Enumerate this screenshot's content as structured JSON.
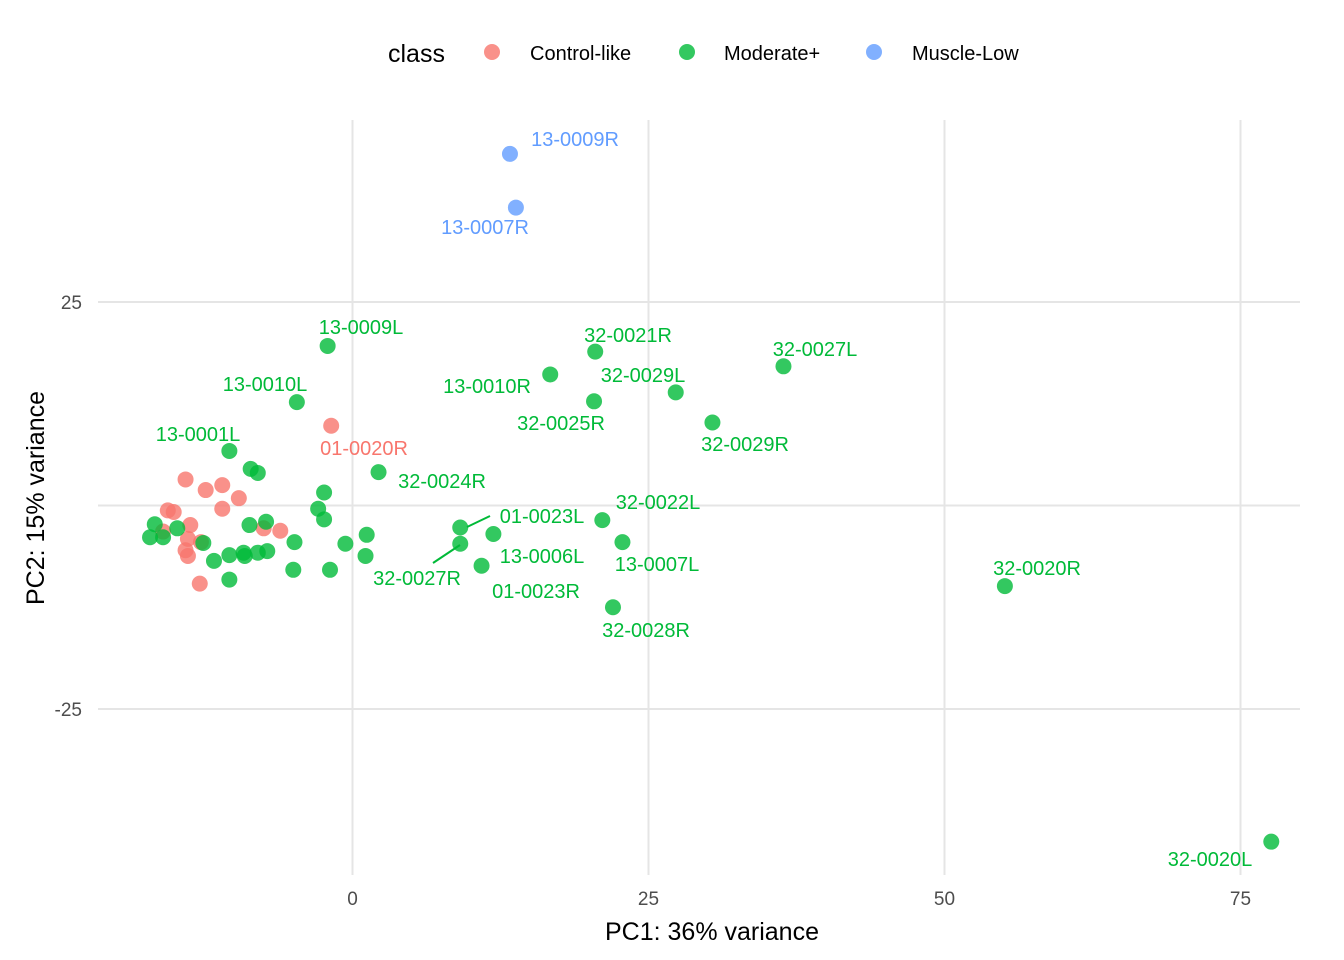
{
  "chart_data": {
    "type": "scatter",
    "xlabel": "PC1: 36% variance",
    "ylabel": "PC2: 15% variance",
    "xlim": [
      -18.5,
      80
    ],
    "ylim": [
      -46.5,
      47.5
    ],
    "x_ticks": [
      0,
      25,
      50,
      75
    ],
    "y_ticks": [
      -25,
      25
    ],
    "grid": true,
    "legend": {
      "title": "class",
      "position": "top",
      "entries": [
        {
          "name": "Control-like",
          "color": "#F8766D"
        },
        {
          "name": "Moderate+",
          "color": "#00BA38"
        },
        {
          "name": "Muscle-Low",
          "color": "#619CFF"
        }
      ]
    },
    "series": [
      {
        "name": "Control-like",
        "color": "#F8766D",
        "points": [
          {
            "x": -1.8,
            "y": 9.8,
            "label": "01-0020R"
          },
          {
            "x": -14.1,
            "y": 3.2
          },
          {
            "x": -12.4,
            "y": 1.9
          },
          {
            "x": -11.0,
            "y": 2.5
          },
          {
            "x": -9.6,
            "y": 0.9
          },
          {
            "x": -11.0,
            "y": -0.4
          },
          {
            "x": -15.6,
            "y": -0.6
          },
          {
            "x": -15.1,
            "y": -0.8
          },
          {
            "x": -13.7,
            "y": -2.4
          },
          {
            "x": -16.0,
            "y": -3.2
          },
          {
            "x": -13.9,
            "y": -4.1
          },
          {
            "x": -12.8,
            "y": -4.5
          },
          {
            "x": -14.1,
            "y": -5.5
          },
          {
            "x": -13.9,
            "y": -6.2
          },
          {
            "x": -7.5,
            "y": -2.8
          },
          {
            "x": -6.1,
            "y": -3.1
          },
          {
            "x": -12.9,
            "y": -9.6
          }
        ]
      },
      {
        "name": "Moderate+",
        "color": "#00BA38",
        "points": [
          {
            "x": -2.1,
            "y": 19.6,
            "label": "13-0009L"
          },
          {
            "x": -4.7,
            "y": 12.7,
            "label": "13-0010L"
          },
          {
            "x": -10.4,
            "y": 6.7,
            "label": "13-0001L"
          },
          {
            "x": 2.2,
            "y": 4.1,
            "label": "32-0024R"
          },
          {
            "x": 16.7,
            "y": 16.1,
            "label": "13-0010R"
          },
          {
            "x": 20.5,
            "y": 18.9,
            "label": "32-0021R"
          },
          {
            "x": 20.4,
            "y": 12.8,
            "label": "32-0025R"
          },
          {
            "x": 27.3,
            "y": 13.9,
            "label": "32-0029L"
          },
          {
            "x": 30.4,
            "y": 10.2,
            "label": "32-0029R"
          },
          {
            "x": 36.4,
            "y": 17.1,
            "label": "32-0027L"
          },
          {
            "x": 9.1,
            "y": -2.7,
            "label": "01-0023L"
          },
          {
            "x": 9.1,
            "y": -4.7,
            "label": "32-0027R"
          },
          {
            "x": 11.9,
            "y": -3.5,
            "label": "13-0006L"
          },
          {
            "x": 10.9,
            "y": -7.4,
            "label": "01-0023R"
          },
          {
            "x": 21.1,
            "y": -1.8,
            "label": "32-0022L"
          },
          {
            "x": 22.8,
            "y": -4.5,
            "label": "13-0007L"
          },
          {
            "x": 22.0,
            "y": -12.5,
            "label": "32-0028R"
          },
          {
            "x": 55.1,
            "y": -9.9,
            "label": "32-0020R"
          },
          {
            "x": 77.6,
            "y": -41.3,
            "label": "32-0020L"
          },
          {
            "x": -8.6,
            "y": 4.5
          },
          {
            "x": -8.0,
            "y": 4.0
          },
          {
            "x": -2.4,
            "y": 1.6
          },
          {
            "x": -2.9,
            "y": -0.4
          },
          {
            "x": -2.4,
            "y": -1.7
          },
          {
            "x": 1.2,
            "y": -3.6
          },
          {
            "x": -0.6,
            "y": -4.7
          },
          {
            "x": 1.1,
            "y": -6.2
          },
          {
            "x": -1.9,
            "y": -7.9
          },
          {
            "x": -4.9,
            "y": -4.5
          },
          {
            "x": -5.0,
            "y": -7.9
          },
          {
            "x": -7.3,
            "y": -2.0
          },
          {
            "x": -8.7,
            "y": -2.4
          },
          {
            "x": -7.2,
            "y": -5.6
          },
          {
            "x": -8.0,
            "y": -5.8
          },
          {
            "x": -9.2,
            "y": -5.8
          },
          {
            "x": -10.4,
            "y": -6.1
          },
          {
            "x": -9.1,
            "y": -6.2
          },
          {
            "x": -11.7,
            "y": -6.8
          },
          {
            "x": -10.4,
            "y": -9.1
          },
          {
            "x": -12.6,
            "y": -4.6
          },
          {
            "x": -14.8,
            "y": -2.8
          },
          {
            "x": -16.7,
            "y": -2.3
          },
          {
            "x": -16.0,
            "y": -3.9
          },
          {
            "x": -17.1,
            "y": -3.9
          }
        ]
      },
      {
        "name": "Muscle-Low",
        "color": "#619CFF",
        "points": [
          {
            "x": 13.3,
            "y": 43.2,
            "label": "13-0009R"
          },
          {
            "x": 13.8,
            "y": 36.6,
            "label": "13-0007R"
          }
        ]
      }
    ]
  }
}
